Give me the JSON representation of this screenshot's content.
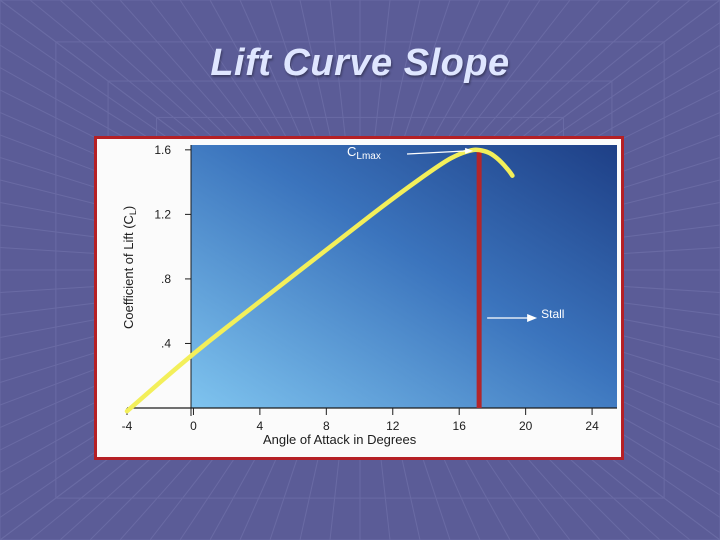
{
  "slide": {
    "title": "Lift Curve Slope"
  },
  "colors": {
    "slide_background": "#5b5c97",
    "frame_border": "#b52025",
    "plot_gradient_light": "#7fc4ef",
    "plot_gradient_dark": "#1e3f86",
    "lift_curve": "#f3ef5a",
    "stall_line": "#b2262b"
  },
  "chart_data": {
    "type": "line",
    "title": "",
    "xlabel": "Angle of Attack in Degrees",
    "ylabel_main": "Coefficient of Lift (C",
    "ylabel_sub": "L",
    "ylabel_close": ")",
    "xlim": [
      -4,
      25.5
    ],
    "ylim": [
      0,
      1.63
    ],
    "xticks": [
      -4,
      0,
      4,
      8,
      12,
      16,
      20,
      24
    ],
    "xtick_labels": [
      "-4",
      "0",
      "4",
      "8",
      "12",
      "16",
      "20",
      "24"
    ],
    "yticks": [
      0.4,
      0.8,
      1.2,
      1.6
    ],
    "ytick_labels": [
      ".4",
      ".8",
      "1.2",
      "1.6"
    ],
    "grid": false,
    "series": [
      {
        "x": [
          -4,
          0,
          4,
          8,
          12,
          15,
          16,
          16.8,
          17.2,
          17.8,
          18.4,
          19,
          19.2
        ],
        "y": [
          -0.02,
          0.34,
          0.66,
          0.98,
          1.3,
          1.52,
          1.575,
          1.6,
          1.6,
          1.585,
          1.54,
          1.47,
          1.44
        ]
      }
    ],
    "stall_angle": 17.2,
    "annotations": {
      "clmax_main": "C",
      "clmax_sub": "Lmax",
      "stall": "Stall"
    }
  }
}
